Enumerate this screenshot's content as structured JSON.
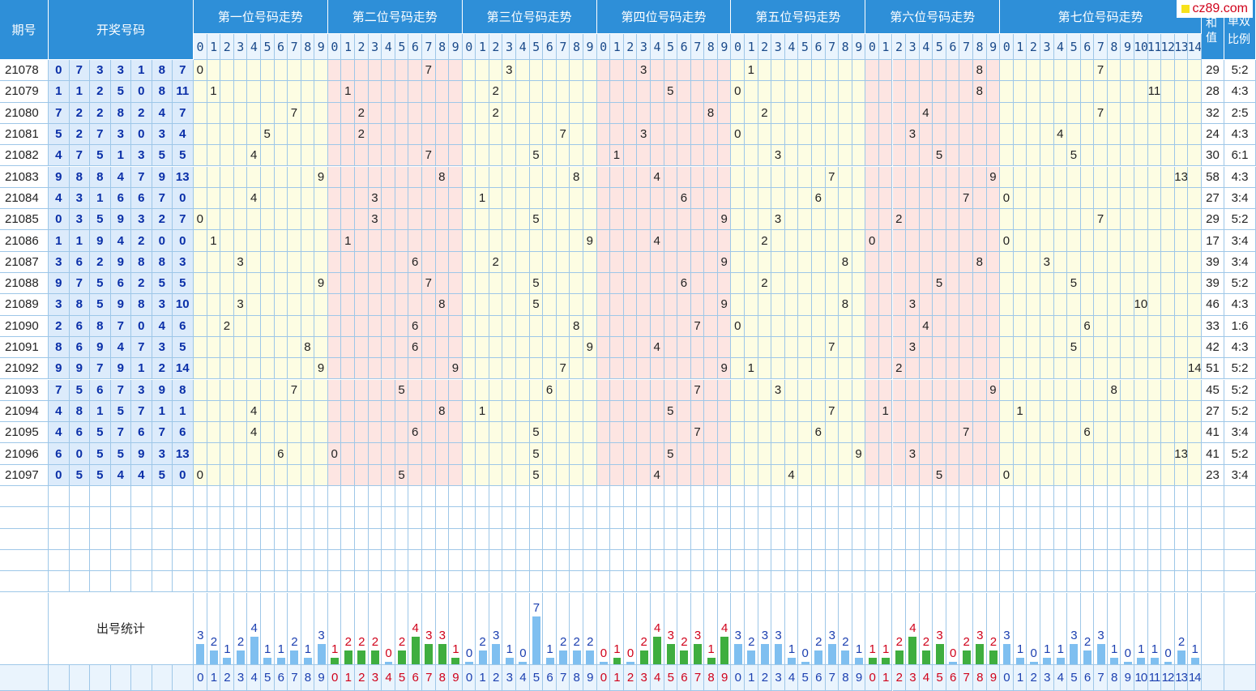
{
  "header": {
    "period_label": "期号",
    "draw_label": "开奖号码",
    "sections": [
      "第一位号码走势",
      "第二位号码走势",
      "第三位号码走势",
      "第四位号码走势",
      "第五位号码走势",
      "第六位号码走势",
      "第七位号码走势"
    ],
    "sum_label": "和值",
    "ratio_label": "单双比例",
    "logo_text": "cz89.com"
  },
  "stats_label": "出号统计",
  "rows": [
    {
      "period": "21078",
      "nums": [
        0,
        7,
        3,
        3,
        1,
        8,
        7
      ],
      "sum": 29,
      "ratio": "5:2"
    },
    {
      "period": "21079",
      "nums": [
        1,
        1,
        2,
        5,
        0,
        8,
        11
      ],
      "sum": 28,
      "ratio": "4:3"
    },
    {
      "period": "21080",
      "nums": [
        7,
        2,
        2,
        8,
        2,
        4,
        7
      ],
      "sum": 32,
      "ratio": "2:5"
    },
    {
      "period": "21081",
      "nums": [
        5,
        2,
        7,
        3,
        0,
        3,
        4
      ],
      "sum": 24,
      "ratio": "4:3"
    },
    {
      "period": "21082",
      "nums": [
        4,
        7,
        5,
        1,
        3,
        5,
        5
      ],
      "sum": 30,
      "ratio": "6:1"
    },
    {
      "period": "21083",
      "nums": [
        9,
        8,
        8,
        4,
        7,
        9,
        13
      ],
      "sum": 58,
      "ratio": "4:3"
    },
    {
      "period": "21084",
      "nums": [
        4,
        3,
        1,
        6,
        6,
        7,
        0
      ],
      "sum": 27,
      "ratio": "3:4"
    },
    {
      "period": "21085",
      "nums": [
        0,
        3,
        5,
        9,
        3,
        2,
        7
      ],
      "sum": 29,
      "ratio": "5:2"
    },
    {
      "period": "21086",
      "nums": [
        1,
        1,
        9,
        4,
        2,
        0,
        0
      ],
      "sum": 17,
      "ratio": "3:4"
    },
    {
      "period": "21087",
      "nums": [
        3,
        6,
        2,
        9,
        8,
        8,
        3
      ],
      "sum": 39,
      "ratio": "3:4"
    },
    {
      "period": "21088",
      "nums": [
        9,
        7,
        5,
        6,
        2,
        5,
        5
      ],
      "sum": 39,
      "ratio": "5:2"
    },
    {
      "period": "21089",
      "nums": [
        3,
        8,
        5,
        9,
        8,
        3,
        10
      ],
      "sum": 46,
      "ratio": "4:3"
    },
    {
      "period": "21090",
      "nums": [
        2,
        6,
        8,
        7,
        0,
        4,
        6
      ],
      "sum": 33,
      "ratio": "1:6"
    },
    {
      "period": "21091",
      "nums": [
        8,
        6,
        9,
        4,
        7,
        3,
        5
      ],
      "sum": 42,
      "ratio": "4:3"
    },
    {
      "period": "21092",
      "nums": [
        9,
        9,
        7,
        9,
        1,
        2,
        14
      ],
      "sum": 51,
      "ratio": "5:2"
    },
    {
      "period": "21093",
      "nums": [
        7,
        5,
        6,
        7,
        3,
        9,
        8
      ],
      "sum": 45,
      "ratio": "5:2"
    },
    {
      "period": "21094",
      "nums": [
        4,
        8,
        1,
        5,
        7,
        1,
        1
      ],
      "sum": 27,
      "ratio": "5:2"
    },
    {
      "period": "21095",
      "nums": [
        4,
        6,
        5,
        7,
        6,
        7,
        6
      ],
      "sum": 41,
      "ratio": "3:4"
    },
    {
      "period": "21096",
      "nums": [
        6,
        0,
        5,
        5,
        9,
        3,
        13
      ],
      "sum": 41,
      "ratio": "5:2"
    },
    {
      "period": "21097",
      "nums": [
        0,
        5,
        5,
        4,
        4,
        5,
        0
      ],
      "sum": 23,
      "ratio": "3:4"
    }
  ],
  "stats": [
    [
      3,
      2,
      1,
      2,
      4,
      1,
      1,
      2,
      1,
      3
    ],
    [
      1,
      2,
      2,
      2,
      0,
      2,
      4,
      3,
      3,
      1
    ],
    [
      0,
      2,
      3,
      1,
      0,
      7,
      1,
      2,
      2,
      2
    ],
    [
      0,
      1,
      0,
      2,
      4,
      3,
      2,
      3,
      1,
      4
    ],
    [
      3,
      2,
      3,
      3,
      1,
      0,
      2,
      3,
      2,
      1
    ],
    [
      1,
      1,
      2,
      4,
      2,
      3,
      0,
      2,
      3,
      2
    ],
    [
      3,
      1,
      0,
      1,
      1,
      3,
      2,
      3,
      1,
      0,
      1,
      1,
      0,
      2,
      1
    ]
  ],
  "colors": {
    "header_bg": "#2e8fd8",
    "yellow_zone": "#fdfde3",
    "pink_zone": "#fde5e2",
    "draw_bg": "#dcebfb",
    "draw_text": "#0a2fa8",
    "bar_blue": "#7fbff0",
    "bar_green": "#3fae3f",
    "label_blue": "#1b3fb0",
    "label_red": "#d0021b"
  }
}
